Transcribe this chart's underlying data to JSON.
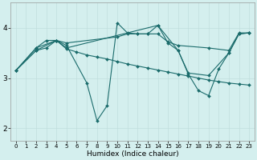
{
  "xlabel": "Humidex (Indice chaleur)",
  "bg_color": "#d4efee",
  "grid_color": "#c0dedd",
  "line_color": "#1a6b6b",
  "xlim": [
    -0.5,
    23.5
  ],
  "ylim": [
    1.75,
    4.5
  ],
  "yticks": [
    2,
    3,
    4
  ],
  "xticks": [
    0,
    1,
    2,
    3,
    4,
    5,
    6,
    7,
    8,
    9,
    10,
    11,
    12,
    13,
    14,
    15,
    16,
    17,
    18,
    19,
    20,
    21,
    22,
    23
  ],
  "lines": [
    {
      "x": [
        0,
        2,
        3,
        4,
        5,
        10,
        11,
        12,
        13,
        14,
        15,
        16,
        19,
        21,
        22,
        23
      ],
      "y": [
        3.15,
        3.6,
        3.75,
        3.75,
        3.7,
        3.82,
        3.88,
        3.88,
        3.88,
        3.88,
        3.72,
        3.65,
        3.6,
        3.55,
        3.9,
        3.9
      ]
    },
    {
      "x": [
        0,
        2,
        4,
        5,
        7,
        8,
        9,
        10,
        11,
        12,
        13,
        14,
        15,
        16,
        17,
        19,
        21,
        22,
        23
      ],
      "y": [
        3.15,
        3.6,
        3.75,
        3.65,
        2.9,
        2.15,
        2.45,
        4.1,
        3.9,
        3.88,
        3.88,
        4.05,
        3.7,
        3.55,
        3.1,
        3.05,
        3.5,
        3.88,
        3.9
      ]
    },
    {
      "x": [
        0,
        2,
        3,
        4,
        5,
        6,
        7,
        8,
        9,
        10,
        11,
        12,
        13,
        14,
        15,
        16,
        17,
        18,
        19,
        20,
        21,
        22,
        23
      ],
      "y": [
        3.15,
        3.55,
        3.6,
        3.75,
        3.58,
        3.52,
        3.46,
        3.42,
        3.38,
        3.33,
        3.28,
        3.24,
        3.2,
        3.16,
        3.12,
        3.08,
        3.04,
        3.0,
        2.96,
        2.93,
        2.9,
        2.88,
        2.86
      ]
    },
    {
      "x": [
        0,
        2,
        4,
        5,
        14,
        16,
        17,
        18,
        19,
        20,
        21,
        22,
        23
      ],
      "y": [
        3.15,
        3.55,
        3.75,
        3.6,
        4.05,
        3.55,
        3.08,
        2.75,
        2.65,
        3.18,
        3.5,
        3.88,
        3.9
      ]
    }
  ]
}
